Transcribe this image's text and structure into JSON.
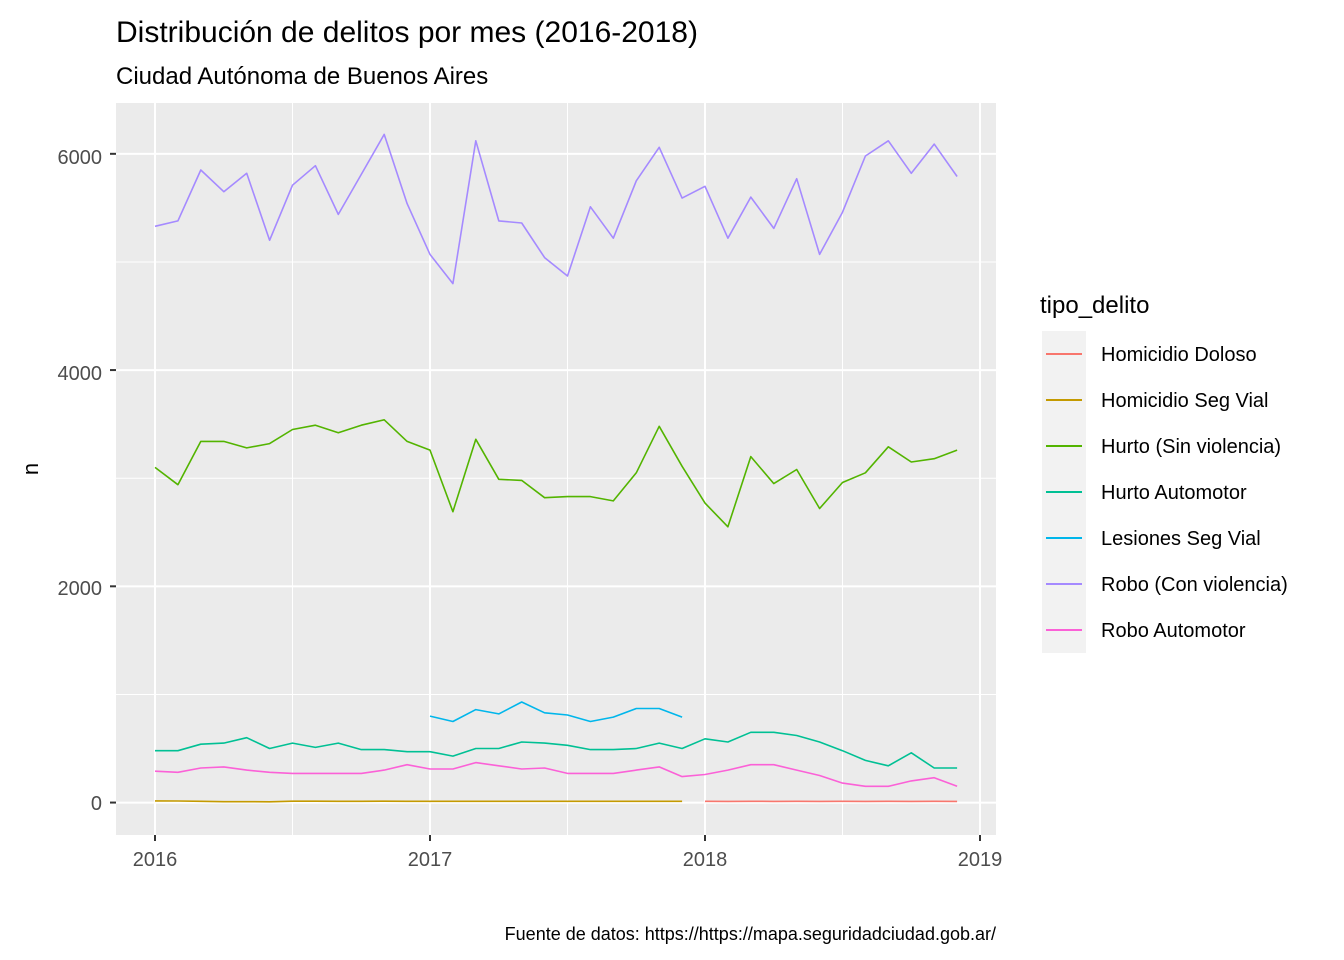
{
  "chart_data": {
    "type": "line",
    "title": "Distribución de delitos por mes (2016-2018)",
    "subtitle": "Ciudad Autónoma de Buenos Aires",
    "caption": "Fuente de datos: https://https://mapa.seguridadciudad.gob.ar/",
    "xlabel": "",
    "ylabel": "n",
    "x_ticks": [
      "2016",
      "2017",
      "2018",
      "2019"
    ],
    "y_ticks": [
      "0",
      "2000",
      "4000",
      "6000"
    ],
    "ylim": [
      -300,
      6470
    ],
    "grid": true,
    "legend_title": "tipo_delito",
    "legend_position": "right",
    "series": [
      {
        "name": "Homicidio Doloso",
        "color": "#F8766D",
        "x": [
          "2018-01",
          "2018-02",
          "2018-03",
          "2018-04",
          "2018-05",
          "2018-06",
          "2018-07",
          "2018-08",
          "2018-09",
          "2018-10",
          "2018-11",
          "2018-12"
        ],
        "y": [
          12,
          11,
          12,
          11,
          12,
          11,
          12,
          11,
          12,
          11,
          12,
          11
        ]
      },
      {
        "name": "Homicidio Seg Vial",
        "color": "#C49A00",
        "x": [
          "2016-01",
          "2016-02",
          "2016-03",
          "2016-04",
          "2016-05",
          "2016-06",
          "2016-07",
          "2016-08",
          "2016-09",
          "2016-10",
          "2016-11",
          "2016-12",
          "2017-01",
          "2017-02",
          "2017-03",
          "2017-04",
          "2017-05",
          "2017-06",
          "2017-07",
          "2017-08",
          "2017-09",
          "2017-10",
          "2017-11",
          "2017-12"
        ],
        "y": [
          15,
          14,
          12,
          8,
          8,
          7,
          13,
          13,
          12,
          12,
          13,
          12,
          12,
          12,
          12,
          12,
          12,
          12,
          12,
          12,
          12,
          12,
          12,
          12
        ]
      },
      {
        "name": "Hurto (Sin violencia)",
        "color": "#53B400",
        "x": [
          "2016-01",
          "2016-02",
          "2016-03",
          "2016-04",
          "2016-05",
          "2016-06",
          "2016-07",
          "2016-08",
          "2016-09",
          "2016-10",
          "2016-11",
          "2016-12",
          "2017-01",
          "2017-02",
          "2017-03",
          "2017-04",
          "2017-05",
          "2017-06",
          "2017-07",
          "2017-08",
          "2017-09",
          "2017-10",
          "2017-11",
          "2017-12",
          "2018-01",
          "2018-02",
          "2018-03",
          "2018-04",
          "2018-05",
          "2018-06",
          "2018-07",
          "2018-08",
          "2018-09",
          "2018-10",
          "2018-11",
          "2018-12"
        ],
        "y": [
          3100,
          2940,
          3340,
          3340,
          3280,
          3320,
          3450,
          3490,
          3420,
          3490,
          3540,
          3340,
          3260,
          2690,
          3360,
          2990,
          2980,
          2820,
          2830,
          2830,
          2790,
          3050,
          3480,
          3110,
          2770,
          2550,
          3200,
          2950,
          3080,
          2720,
          2960,
          3050,
          3290,
          3150,
          3180,
          3260
        ]
      },
      {
        "name": "Hurto Automotor",
        "color": "#00C094",
        "x": [
          "2016-01",
          "2016-02",
          "2016-03",
          "2016-04",
          "2016-05",
          "2016-06",
          "2016-07",
          "2016-08",
          "2016-09",
          "2016-10",
          "2016-11",
          "2016-12",
          "2017-01",
          "2017-02",
          "2017-03",
          "2017-04",
          "2017-05",
          "2017-06",
          "2017-07",
          "2017-08",
          "2017-09",
          "2017-10",
          "2017-11",
          "2017-12",
          "2018-01",
          "2018-02",
          "2018-03",
          "2018-04",
          "2018-05",
          "2018-06",
          "2018-07",
          "2018-08",
          "2018-09",
          "2018-10",
          "2018-11",
          "2018-12"
        ],
        "y": [
          480,
          480,
          540,
          550,
          600,
          500,
          550,
          510,
          550,
          490,
          490,
          470,
          470,
          430,
          500,
          500,
          560,
          550,
          530,
          490,
          490,
          500,
          550,
          500,
          590,
          560,
          650,
          650,
          620,
          560,
          480,
          390,
          340,
          460,
          320,
          320
        ]
      },
      {
        "name": "Lesiones Seg Vial",
        "color": "#00B6EB",
        "x": [
          "2017-01",
          "2017-02",
          "2017-03",
          "2017-04",
          "2017-05",
          "2017-06",
          "2017-07",
          "2017-08",
          "2017-09",
          "2017-10",
          "2017-11",
          "2017-12"
        ],
        "y": [
          800,
          750,
          860,
          820,
          930,
          830,
          810,
          750,
          790,
          870,
          870,
          790
        ]
      },
      {
        "name": "Robo (Con violencia)",
        "color": "#A58AFF",
        "x": [
          "2016-01",
          "2016-02",
          "2016-03",
          "2016-04",
          "2016-05",
          "2016-06",
          "2016-07",
          "2016-08",
          "2016-09",
          "2016-10",
          "2016-11",
          "2016-12",
          "2017-01",
          "2017-02",
          "2017-03",
          "2017-04",
          "2017-05",
          "2017-06",
          "2017-07",
          "2017-08",
          "2017-09",
          "2017-10",
          "2017-11",
          "2017-12",
          "2018-01",
          "2018-02",
          "2018-03",
          "2018-04",
          "2018-05",
          "2018-06",
          "2018-07",
          "2018-08",
          "2018-09",
          "2018-10",
          "2018-11",
          "2018-12"
        ],
        "y": [
          5330,
          5380,
          5850,
          5650,
          5820,
          5200,
          5710,
          5890,
          5440,
          5810,
          6180,
          5540,
          5070,
          4800,
          6120,
          5380,
          5360,
          5040,
          4870,
          5510,
          5220,
          5750,
          6060,
          5590,
          5700,
          5220,
          5600,
          5310,
          5770,
          5070,
          5460,
          5980,
          6120,
          5820,
          6090,
          5790
        ]
      },
      {
        "name": "Robo Automotor",
        "color": "#FB61D7",
        "x": [
          "2016-01",
          "2016-02",
          "2016-03",
          "2016-04",
          "2016-05",
          "2016-06",
          "2016-07",
          "2016-08",
          "2016-09",
          "2016-10",
          "2016-11",
          "2016-12",
          "2017-01",
          "2017-02",
          "2017-03",
          "2017-04",
          "2017-05",
          "2017-06",
          "2017-07",
          "2017-08",
          "2017-09",
          "2017-10",
          "2017-11",
          "2017-12",
          "2018-01",
          "2018-02",
          "2018-03",
          "2018-04",
          "2018-05",
          "2018-06",
          "2018-07",
          "2018-08",
          "2018-09",
          "2018-10",
          "2018-11",
          "2018-12"
        ],
        "y": [
          290,
          280,
          320,
          330,
          300,
          280,
          270,
          270,
          270,
          270,
          300,
          350,
          310,
          310,
          370,
          340,
          310,
          320,
          270,
          270,
          270,
          300,
          330,
          240,
          260,
          300,
          350,
          350,
          300,
          250,
          180,
          150,
          150,
          200,
          230,
          150
        ]
      }
    ]
  }
}
